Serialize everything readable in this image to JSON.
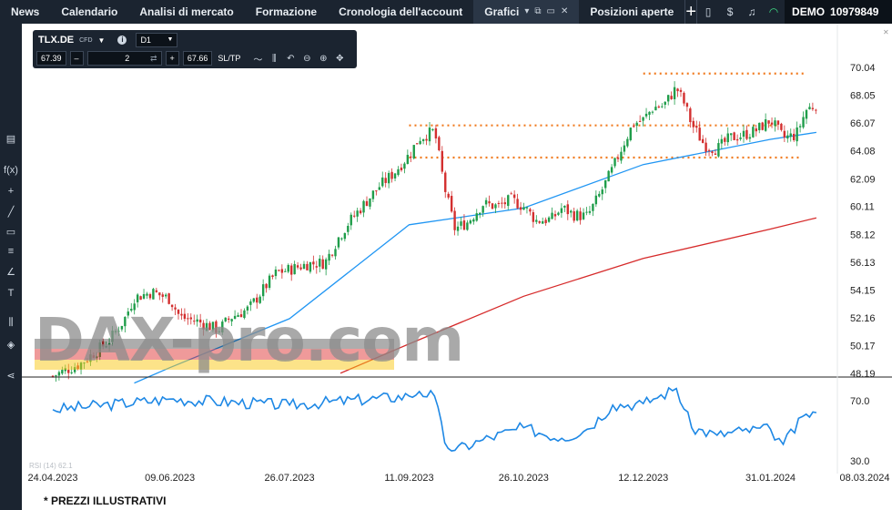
{
  "nav": {
    "tabs": [
      {
        "label": "News"
      },
      {
        "label": "Calendario"
      },
      {
        "label": "Analisi di mercato"
      },
      {
        "label": "Formazione"
      },
      {
        "label": "Cronologia dell'account"
      },
      {
        "label": "Grafici"
      },
      {
        "label": "Posizioni aperte"
      }
    ],
    "account_label": "DEMO",
    "account_number": "10979849"
  },
  "toolbox": {
    "symbol": "TLX.DE",
    "symbol_type": "CFD",
    "timeframe": "D1",
    "bid": "67.39",
    "quantity": "2",
    "ask": "67.66",
    "sltp": "SL/TP"
  },
  "watermark": "DAX-pro.com",
  "footer": "* PREZZI ILLUSTRATIVI",
  "colors": {
    "up": "#1f9d4a",
    "down": "#d32f2f",
    "ma_fast": "#2196f3",
    "ma_slow": "#d62a2a",
    "level": "#f07a1e",
    "rsi": "#1e88e5"
  },
  "chart_data": [
    {
      "type": "candlestick",
      "symbol": "TLX.DE",
      "timeframe": "D1",
      "y_ticks": [
        "70.04",
        "68.05",
        "66.07",
        "64.08",
        "62.09",
        "60.11",
        "58.12",
        "56.13",
        "54.15",
        "52.16",
        "50.17",
        "48.19"
      ],
      "ylim": [
        48.19,
        70.04
      ],
      "x_ticks": [
        "24.04.2023",
        "09.06.2023",
        "26.07.2023",
        "11.09.2023",
        "26.10.2023",
        "12.12.2023",
        "31.01.2024",
        "08.03.2024"
      ],
      "close_path": [
        [
          "24.04.2023",
          48.0
        ],
        [
          "05.05.2023",
          48.9
        ],
        [
          "16.05.2023",
          50.5
        ],
        [
          "22.05.2023",
          52.0
        ],
        [
          "26.05.2023",
          53.6
        ],
        [
          "02.06.2023",
          54.0
        ],
        [
          "09.06.2023",
          53.5
        ],
        [
          "13.06.2023",
          52.2
        ],
        [
          "20.06.2023",
          51.9
        ],
        [
          "28.06.2023",
          51.3
        ],
        [
          "03.07.2023",
          52.2
        ],
        [
          "10.07.2023",
          52.8
        ],
        [
          "17.07.2023",
          54.5
        ],
        [
          "21.07.2023",
          55.4
        ],
        [
          "26.07.2023",
          55.6
        ],
        [
          "02.08.2023",
          56.0
        ],
        [
          "09.08.2023",
          56.1
        ],
        [
          "14.08.2023",
          57.8
        ],
        [
          "18.08.2023",
          58.9
        ],
        [
          "23.08.2023",
          60.0
        ],
        [
          "30.08.2023",
          61.5
        ],
        [
          "05.09.2023",
          62.5
        ],
        [
          "11.09.2023",
          63.8
        ],
        [
          "15.09.2023",
          65.0
        ],
        [
          "21.09.2023",
          65.5
        ],
        [
          "25.09.2023",
          61.4
        ],
        [
          "29.09.2023",
          58.5
        ],
        [
          "04.10.2023",
          59.0
        ],
        [
          "10.10.2023",
          60.3
        ],
        [
          "16.10.2023",
          60.1
        ],
        [
          "21.10.2023",
          60.6
        ],
        [
          "26.10.2023",
          60.1
        ],
        [
          "31.10.2023",
          59.1
        ],
        [
          "06.11.2023",
          59.2
        ],
        [
          "10.11.2023",
          60.0
        ],
        [
          "15.11.2023",
          59.5
        ],
        [
          "20.11.2023",
          59.4
        ],
        [
          "25.11.2023",
          61.0
        ],
        [
          "30.11.2023",
          62.8
        ],
        [
          "04.12.2023",
          64.5
        ],
        [
          "08.12.2023",
          66.0
        ],
        [
          "12.12.2023",
          66.3
        ],
        [
          "16.12.2023",
          67.2
        ],
        [
          "20.12.2023",
          67.3
        ],
        [
          "25.12.2023",
          68.6
        ],
        [
          "28.12.2023",
          67.5
        ],
        [
          "31.12.2023",
          66.0
        ],
        [
          "05.01.2024",
          64.5
        ],
        [
          "10.01.2024",
          64.2
        ],
        [
          "15.01.2024",
          65.0
        ],
        [
          "20.01.2024",
          65.2
        ],
        [
          "25.01.2024",
          65.5
        ],
        [
          "31.01.2024",
          66.3
        ],
        [
          "05.02.2024",
          65.0
        ],
        [
          "10.02.2024",
          65.2
        ],
        [
          "14.02.2024",
          67.0
        ],
        [
          "18.02.2024",
          67.4
        ]
      ],
      "series": [
        {
          "label": "MA 50",
          "values": [
            [
              "26.05.2023",
              47.5
            ],
            [
              "09.06.2023",
              48.6
            ],
            [
              "26.07.2023",
              52.1
            ],
            [
              "11.09.2023",
              58.8
            ],
            [
              "26.10.2023",
              60.0
            ],
            [
              "12.12.2023",
              63.1
            ],
            [
              "31.01.2024",
              64.9
            ],
            [
              "18.02.2024",
              65.4
            ]
          ]
        },
        {
          "label": "MA 200",
          "values": [
            [
              "15.08.2023",
              48.2
            ],
            [
              "11.09.2023",
              50.3
            ],
            [
              "26.10.2023",
              53.7
            ],
            [
              "12.12.2023",
              56.4
            ],
            [
              "31.01.2024",
              58.5
            ],
            [
              "18.02.2024",
              59.3
            ]
          ]
        }
      ],
      "levels": [
        {
          "value": 69.6,
          "from": "12.12.2023"
        },
        {
          "value": 65.9,
          "from": "11.09.2023"
        },
        {
          "value": 63.6,
          "from": "11.09.2023"
        }
      ]
    },
    {
      "type": "line",
      "label": "RSI (14) 62.1",
      "y_ticks": [
        "70.0",
        "30.0"
      ],
      "ylim": [
        24,
        82
      ],
      "values": [
        [
          "24.04.2023",
          64
        ],
        [
          "09.06.2023",
          71
        ],
        [
          "26.07.2023",
          67
        ],
        [
          "11.09.2023",
          73
        ],
        [
          "15.09.2023",
          76
        ],
        [
          "21.09.2023",
          73
        ],
        [
          "25.09.2023",
          42
        ],
        [
          "29.09.2023",
          37
        ],
        [
          "10.10.2023",
          44
        ],
        [
          "26.10.2023",
          52
        ],
        [
          "10.11.2023",
          45
        ],
        [
          "20.11.2023",
          51
        ],
        [
          "30.11.2023",
          67
        ],
        [
          "12.12.2023",
          68
        ],
        [
          "16.12.2023",
          71
        ],
        [
          "25.12.2023",
          78
        ],
        [
          "31.12.2023",
          52
        ],
        [
          "10.01.2024",
          47
        ],
        [
          "20.01.2024",
          50
        ],
        [
          "31.01.2024",
          51
        ],
        [
          "05.02.2024",
          41
        ],
        [
          "14.02.2024",
          61
        ],
        [
          "18.02.2024",
          62
        ]
      ]
    }
  ]
}
